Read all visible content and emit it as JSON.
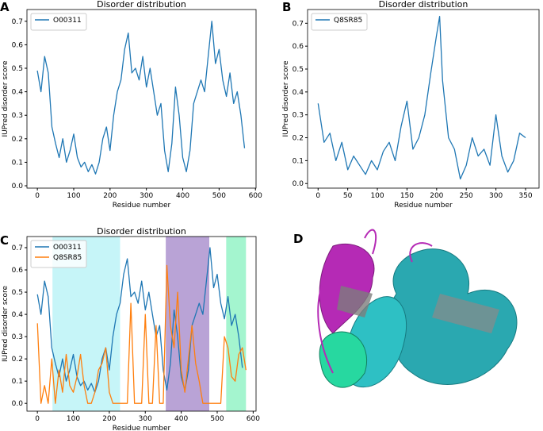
{
  "chart_data": [
    {
      "type": "line",
      "panel_label": "A",
      "title": "Disorder distribution",
      "x_label": "Residue number",
      "y_label": "IUPred disorder score",
      "legend_loc": "upper left",
      "x": [
        0,
        10,
        20,
        30,
        40,
        50,
        60,
        70,
        80,
        90,
        100,
        110,
        120,
        130,
        140,
        150,
        160,
        170,
        180,
        190,
        200,
        210,
        220,
        230,
        240,
        250,
        260,
        270,
        280,
        290,
        300,
        310,
        320,
        330,
        340,
        350,
        360,
        370,
        380,
        390,
        400,
        410,
        420,
        430,
        440,
        450,
        460,
        470,
        480,
        490,
        500,
        510,
        520,
        530,
        540,
        550,
        560,
        570
      ],
      "series": [
        {
          "name": "O00311",
          "color": "#1f77b4",
          "values": [
            0.49,
            0.4,
            0.55,
            0.48,
            0.25,
            0.18,
            0.12,
            0.2,
            0.1,
            0.15,
            0.22,
            0.12,
            0.08,
            0.1,
            0.06,
            0.09,
            0.05,
            0.1,
            0.2,
            0.25,
            0.15,
            0.3,
            0.4,
            0.45,
            0.58,
            0.65,
            0.48,
            0.5,
            0.45,
            0.55,
            0.42,
            0.5,
            0.4,
            0.3,
            0.35,
            0.15,
            0.06,
            0.18,
            0.42,
            0.3,
            0.12,
            0.06,
            0.15,
            0.35,
            0.4,
            0.45,
            0.4,
            0.55,
            0.7,
            0.52,
            0.58,
            0.45,
            0.38,
            0.48,
            0.35,
            0.4,
            0.3,
            0.16
          ]
        }
      ],
      "xlim": [
        -28.65,
        601.65
      ],
      "xticks": [
        0,
        100,
        200,
        300,
        400,
        500,
        600
      ],
      "ylim": [
        -0.01,
        0.75
      ],
      "yticks": [
        {
          "value": 0,
          "label": "0.0"
        },
        0.1,
        0.2,
        0.3,
        0.4,
        0.5,
        0.6,
        0.7
      ]
    },
    {
      "type": "line",
      "panel_label": "B",
      "title": "Disorder distribution",
      "x_label": "Residue number",
      "y_label": "IUPred disorder score",
      "legend_loc": "upper left",
      "x": [
        0,
        10,
        20,
        30,
        40,
        50,
        60,
        70,
        80,
        90,
        100,
        110,
        120,
        130,
        140,
        150,
        160,
        170,
        180,
        190,
        200,
        205,
        210,
        220,
        230,
        240,
        250,
        260,
        270,
        280,
        290,
        300,
        310,
        320,
        330,
        340,
        350
      ],
      "series": [
        {
          "name": "Q8SR85",
          "color": "#1f77b4",
          "values": [
            0.35,
            0.18,
            0.22,
            0.1,
            0.18,
            0.06,
            0.12,
            0.08,
            0.04,
            0.1,
            0.06,
            0.14,
            0.18,
            0.1,
            0.25,
            0.36,
            0.15,
            0.2,
            0.3,
            0.48,
            0.65,
            0.73,
            0.45,
            0.2,
            0.15,
            0.02,
            0.08,
            0.2,
            0.12,
            0.15,
            0.08,
            0.3,
            0.12,
            0.05,
            0.1,
            0.22,
            0.2
          ]
        }
      ],
      "xlim": [
        -17.75,
        372.75
      ],
      "xticks": [
        0,
        50,
        100,
        150,
        200,
        250,
        300,
        350
      ],
      "ylim": [
        -0.02,
        0.76
      ],
      "yticks": [
        {
          "value": 0,
          "label": "0.0"
        },
        0.1,
        0.2,
        0.3,
        0.4,
        0.5,
        0.6,
        0.7
      ]
    },
    {
      "type": "line",
      "panel_label": "C",
      "title": "Disorder distribution",
      "x_label": "Residue number",
      "y_label": "IUPred disorder score",
      "legend_loc": "upper left",
      "spans": [
        {
          "x0": 42,
          "x1": 230,
          "color": "#c6f5f8"
        },
        {
          "x0": 357,
          "x1": 478,
          "color": "#b9a3d6"
        },
        {
          "x0": 525,
          "x1": 580,
          "color": "#a4f5cf"
        }
      ],
      "series": [
        {
          "name": "O00311",
          "color": "#1f77b4",
          "x": [
            0,
            10,
            20,
            30,
            40,
            50,
            60,
            70,
            80,
            90,
            100,
            110,
            120,
            130,
            140,
            150,
            160,
            170,
            180,
            190,
            200,
            210,
            220,
            230,
            240,
            250,
            260,
            270,
            280,
            290,
            300,
            310,
            320,
            330,
            340,
            350,
            360,
            370,
            380,
            390,
            400,
            410,
            420,
            430,
            440,
            450,
            460,
            470,
            480,
            490,
            500,
            510,
            520,
            530,
            540,
            550,
            560,
            570
          ],
          "values": [
            0.49,
            0.4,
            0.55,
            0.48,
            0.25,
            0.18,
            0.12,
            0.2,
            0.1,
            0.15,
            0.22,
            0.12,
            0.08,
            0.1,
            0.06,
            0.09,
            0.05,
            0.1,
            0.2,
            0.25,
            0.15,
            0.3,
            0.4,
            0.45,
            0.58,
            0.65,
            0.48,
            0.5,
            0.45,
            0.55,
            0.42,
            0.5,
            0.4,
            0.3,
            0.35,
            0.15,
            0.06,
            0.18,
            0.42,
            0.3,
            0.12,
            0.06,
            0.15,
            0.35,
            0.4,
            0.45,
            0.4,
            0.55,
            0.7,
            0.52,
            0.58,
            0.45,
            0.38,
            0.48,
            0.35,
            0.4,
            0.3,
            0.16
          ]
        },
        {
          "name": "Q8SR85",
          "color": "#ff7f0e",
          "x": [
            0,
            10,
            20,
            30,
            40,
            50,
            60,
            70,
            80,
            90,
            100,
            110,
            120,
            130,
            140,
            150,
            160,
            170,
            180,
            190,
            200,
            210,
            220,
            230,
            240,
            250,
            260,
            270,
            280,
            290,
            300,
            310,
            320,
            330,
            340,
            350,
            360,
            370,
            380,
            390,
            400,
            410,
            420,
            430,
            440,
            450,
            460,
            470,
            480,
            490,
            500,
            510,
            520,
            530,
            540,
            550,
            560,
            570,
            580
          ],
          "values": [
            0.36,
            0,
            0.08,
            0,
            0.2,
            0,
            0.15,
            0.05,
            0.22,
            0.08,
            0.05,
            0.12,
            0.22,
            0.08,
            0,
            0,
            0.05,
            0.15,
            0.18,
            0.25,
            0.05,
            0,
            0,
            0,
            0,
            0,
            0.45,
            0,
            0,
            0,
            0.4,
            0,
            0,
            0.35,
            0,
            0,
            0.62,
            0.35,
            0.25,
            0.5,
            0.15,
            0.05,
            0.2,
            0.35,
            0.18,
            0.1,
            0,
            0,
            0,
            0,
            0,
            0,
            0.3,
            0.25,
            0.12,
            0.1,
            0.22,
            0.25,
            0.15
          ]
        }
      ],
      "xlim": [
        -29,
        608
      ],
      "xticks": [
        0,
        100,
        200,
        300,
        400,
        500,
        600
      ],
      "ylim": [
        -0.035,
        0.75
      ],
      "yticks": [
        {
          "value": 0,
          "label": "0.0"
        },
        0.1,
        0.2,
        0.3,
        0.4,
        0.5,
        0.6,
        0.7
      ]
    }
  ],
  "panel_d": {
    "panel_label": "D"
  }
}
